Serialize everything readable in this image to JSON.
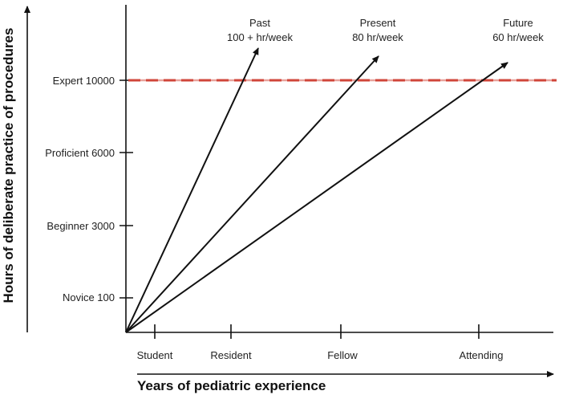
{
  "colors": {
    "axis": "#111111",
    "text": "#222222",
    "expert_line": "#d0453a",
    "expert_line_gap": "#e8a29b"
  },
  "y_levels": [
    {
      "label": "Novice 100",
      "value": 100
    },
    {
      "label": "Beginner 3000",
      "value": 3000
    },
    {
      "label": "Proficient 6000",
      "value": 6000
    },
    {
      "label": "Expert 10000",
      "value": 10000
    }
  ],
  "x_stages": [
    "Student",
    "Resident",
    "Fellow",
    "Attending"
  ],
  "arrows": [
    {
      "line1": "Past",
      "line2": "100 + hr/week"
    },
    {
      "line1": "Present",
      "line2": "80 hr/week"
    },
    {
      "line1": "Future",
      "line2": "60 hr/week"
    }
  ],
  "y_axis_title": "Hours of deliberate practice of procedures",
  "x_axis_title": "Years of pediatric experience"
}
